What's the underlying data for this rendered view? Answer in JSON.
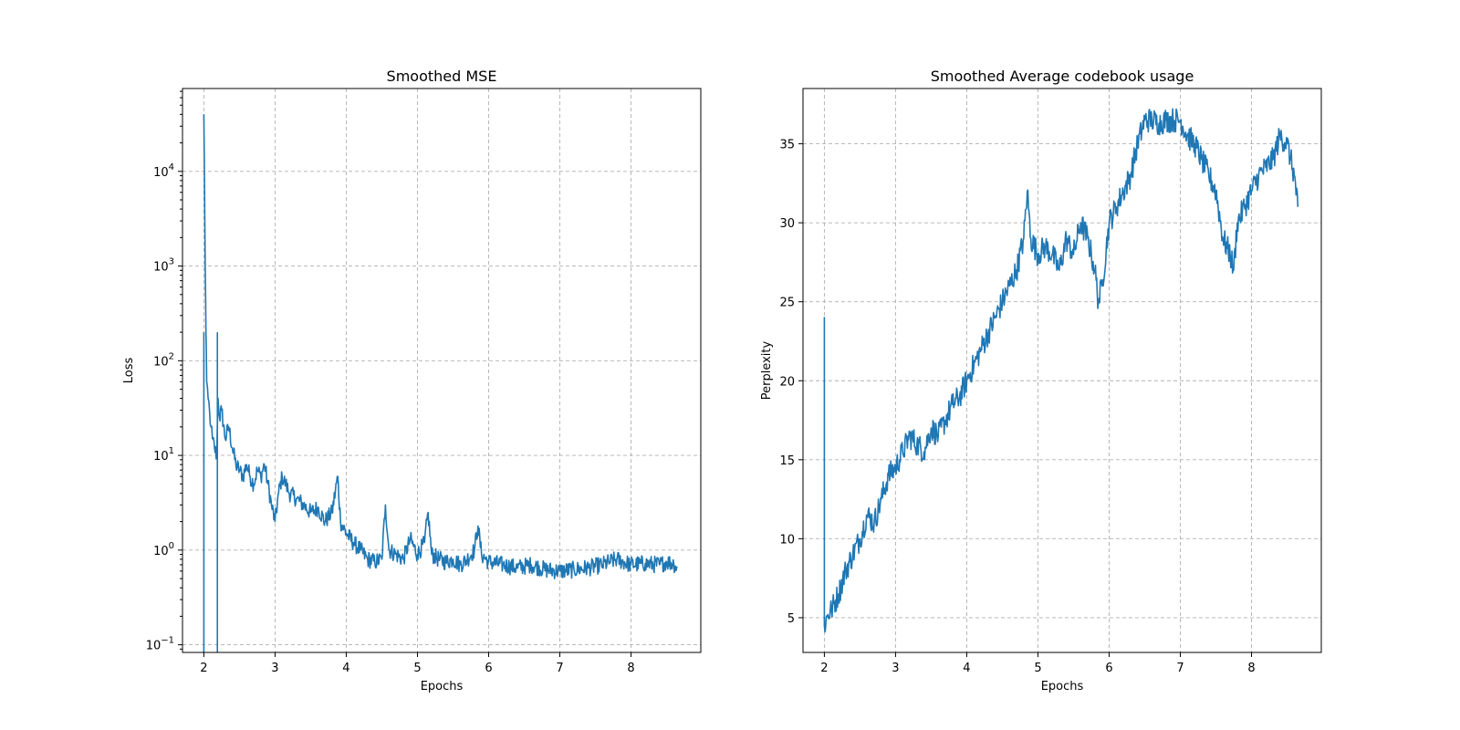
{
  "chart_data": [
    {
      "type": "line",
      "title": "Smoothed MSE",
      "xlabel": "Epochs",
      "ylabel": "Loss",
      "yscale": "log",
      "xlim": [
        1.7,
        8.98
      ],
      "ylim": [
        0.083,
        75000
      ],
      "x_ticks": [
        2,
        3,
        4,
        5,
        6,
        7,
        8
      ],
      "x_tick_labels": [
        "2",
        "3",
        "4",
        "5",
        "6",
        "7",
        "8"
      ],
      "y_ticks": [
        0.1,
        1,
        10,
        100,
        1000,
        10000
      ],
      "y_tick_labels": [
        {
          "base": "10",
          "exp": "−1"
        },
        {
          "base": "10",
          "exp": "0"
        },
        {
          "base": "10",
          "exp": "1"
        },
        {
          "base": "10",
          "exp": "2"
        },
        {
          "base": "10",
          "exp": "3"
        },
        {
          "base": "10",
          "exp": "4"
        }
      ],
      "grid": true,
      "color": "#1f77b4",
      "series": [
        {
          "x": [
            2.0,
            2.01,
            2.02,
            2.03,
            2.04,
            2.06,
            2.08,
            2.1,
            2.12,
            2.15,
            2.18,
            2.2,
            2.22,
            2.25,
            2.3,
            2.35,
            2.4,
            2.45,
            2.5,
            2.55,
            2.6,
            2.65,
            2.7,
            2.75,
            2.8,
            2.85,
            2.9,
            2.95,
            3.0,
            3.05,
            3.1,
            3.15,
            3.2,
            3.3,
            3.4,
            3.5,
            3.6,
            3.7,
            3.8,
            3.88,
            3.92,
            4.0,
            4.1,
            4.2,
            4.3,
            4.4,
            4.5,
            4.55,
            4.6,
            4.7,
            4.8,
            4.9,
            5.0,
            5.1,
            5.15,
            5.2,
            5.3,
            5.4,
            5.5,
            5.6,
            5.7,
            5.8,
            5.85,
            5.9,
            6.0,
            6.2,
            6.4,
            6.6,
            6.8,
            7.0,
            7.2,
            7.4,
            7.6,
            7.7,
            7.8,
            8.0,
            8.2,
            8.4,
            8.5,
            8.6,
            8.65
          ],
          "y": [
            40000,
            6000,
            800,
            200,
            60,
            40,
            30,
            20,
            15,
            12,
            10,
            40,
            25,
            30,
            15,
            20,
            12,
            8,
            7,
            6,
            8,
            6,
            5,
            7,
            6,
            8,
            5,
            3,
            2,
            4,
            6,
            5,
            4,
            3.5,
            3,
            2.5,
            2.8,
            2,
            2.5,
            6,
            2,
            1.5,
            1.2,
            1.0,
            0.8,
            0.75,
            0.8,
            3,
            1.0,
            0.9,
            0.8,
            1.3,
            0.9,
            1.2,
            2.5,
            0.9,
            0.8,
            0.75,
            0.8,
            0.7,
            0.8,
            1.0,
            1.8,
            0.9,
            0.75,
            0.7,
            0.65,
            0.7,
            0.62,
            0.6,
            0.62,
            0.65,
            0.7,
            0.75,
            0.8,
            0.7,
            0.72,
            0.7,
            0.75,
            0.72,
            0.65
          ]
        }
      ]
    },
    {
      "type": "line",
      "title": "Smoothed Average codebook usage",
      "xlabel": "Epochs",
      "ylabel": "Perplexity",
      "yscale": "linear",
      "xlim": [
        1.7,
        8.98
      ],
      "ylim": [
        2.8,
        38.5
      ],
      "x_ticks": [
        2,
        3,
        4,
        5,
        6,
        7,
        8
      ],
      "x_tick_labels": [
        "2",
        "3",
        "4",
        "5",
        "6",
        "7",
        "8"
      ],
      "y_ticks": [
        5,
        10,
        15,
        20,
        25,
        30,
        35
      ],
      "y_tick_labels": [
        "5",
        "10",
        "15",
        "20",
        "25",
        "30",
        "35"
      ],
      "grid": true,
      "color": "#1f77b4",
      "series": [
        {
          "x": [
            2.0,
            2.0,
            2.0,
            2.05,
            2.1,
            2.2,
            2.3,
            2.4,
            2.5,
            2.6,
            2.7,
            2.8,
            2.9,
            3.0,
            3.1,
            3.2,
            3.3,
            3.4,
            3.5,
            3.6,
            3.7,
            3.8,
            3.9,
            4.0,
            4.1,
            4.2,
            4.3,
            4.4,
            4.5,
            4.6,
            4.7,
            4.8,
            4.85,
            4.9,
            5.0,
            5.1,
            5.2,
            5.3,
            5.4,
            5.5,
            5.6,
            5.7,
            5.75,
            5.8,
            5.85,
            5.9,
            6.0,
            6.1,
            6.2,
            6.3,
            6.4,
            6.5,
            6.6,
            6.7,
            6.8,
            6.9,
            7.0,
            7.1,
            7.2,
            7.3,
            7.4,
            7.5,
            7.6,
            7.7,
            7.75,
            7.8,
            7.9,
            8.0,
            8.1,
            8.2,
            8.3,
            8.4,
            8.5,
            8.55,
            8.6,
            8.65
          ],
          "y": [
            5,
            24,
            4.5,
            5.2,
            5.5,
            6.5,
            8,
            9,
            10,
            11.5,
            11,
            12.5,
            14,
            14.5,
            15.5,
            16.5,
            16,
            15.5,
            17,
            16.5,
            17.5,
            18.5,
            19,
            20,
            21,
            22,
            23,
            24,
            25,
            26,
            27,
            29,
            32,
            29,
            28,
            28.5,
            28,
            27,
            29,
            28,
            30,
            29,
            28,
            27,
            25,
            26,
            30,
            31,
            32,
            33,
            35,
            36.5,
            36.5,
            36.3,
            36.5,
            36.5,
            36.5,
            35.5,
            35,
            34,
            33,
            32,
            29,
            28,
            27,
            30,
            31,
            32,
            33,
            33.5,
            34,
            35.5,
            35,
            34,
            33,
            31
          ]
        }
      ]
    }
  ]
}
